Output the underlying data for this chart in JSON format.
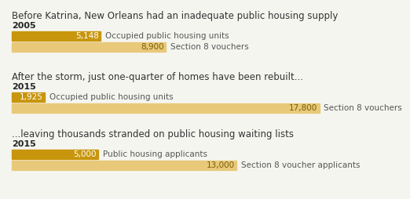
{
  "title1": "Before Katrina, New Orleans had an inadequate public housing supply",
  "title2": "After the storm, just one-quarter of homes have been rebuilt...",
  "title3": "...leaving thousands stranded on public housing waiting lists",
  "year1": "2005",
  "year2": "2015",
  "year3": "2015",
  "section1": [
    {
      "value": 5148,
      "label": "Occupied public housing units",
      "color": "#C8960C",
      "text_color": "#ffffff"
    },
    {
      "value": 8900,
      "label": "Section 8 vouchers",
      "color": "#E8C97A",
      "text_color": "#7a5c00"
    }
  ],
  "section2": [
    {
      "value": 1925,
      "label": "Occupied public housing units",
      "color": "#C8960C",
      "text_color": "#ffffff"
    },
    {
      "value": 17800,
      "label": "Section 8 vouchers",
      "color": "#E8C97A",
      "text_color": "#7a5c00"
    }
  ],
  "section3": [
    {
      "value": 5000,
      "label": "Public housing applicants",
      "color": "#C8960C",
      "text_color": "#ffffff"
    },
    {
      "value": 13000,
      "label": "Section 8 voucher applicants",
      "color": "#E8C97A",
      "text_color": "#7a5c00"
    }
  ],
  "max_value": 20000,
  "bg_color": "#F5F5F0",
  "title_fontsize": 8.5,
  "year_fontsize": 8.0,
  "bar_label_fontsize": 7.5,
  "annotation_fontsize": 7.5,
  "label_color": "#555555"
}
